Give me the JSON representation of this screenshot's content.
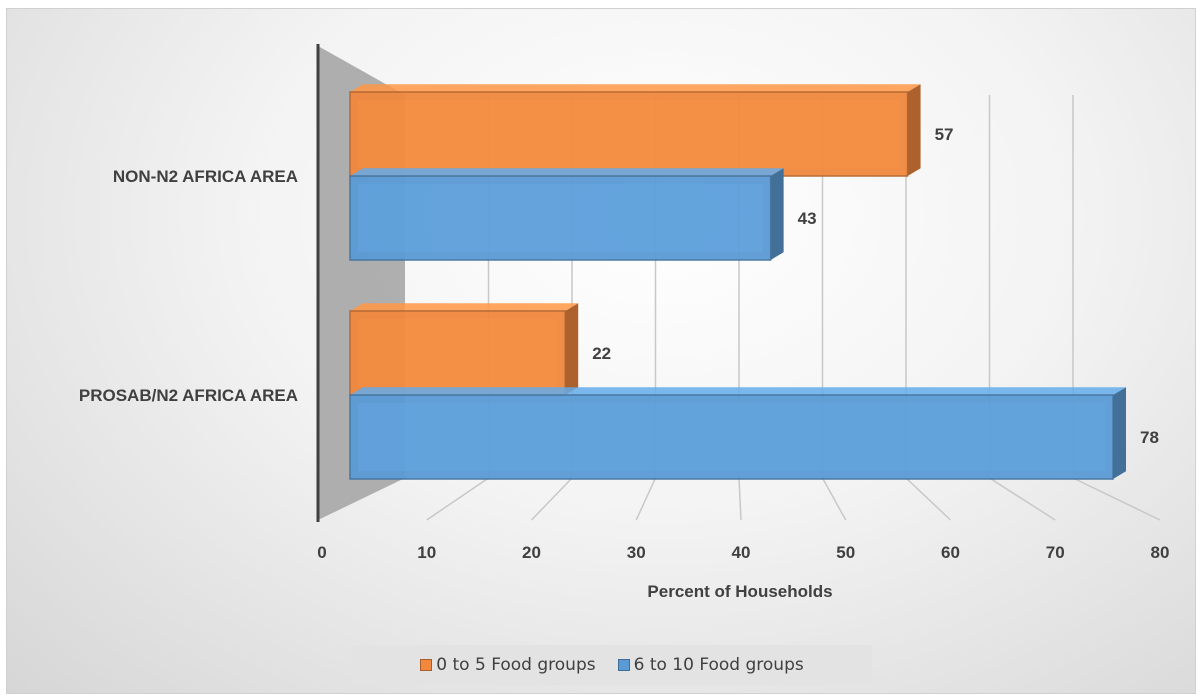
{
  "chart_data": {
    "type": "bar",
    "orientation": "horizontal",
    "style": "3d",
    "categories": [
      "NON-N2 AFRICA AREA",
      "PROSAB/N2 AFRICA AREA"
    ],
    "series": [
      {
        "name": "0 to 5 Food groups",
        "values": [
          57,
          22
        ],
        "color": "#f0883e"
      },
      {
        "name": "6 to 10 Food groups",
        "values": [
          43,
          78
        ],
        "color": "#5b9bd5"
      }
    ],
    "xlabel": "Percent of Households",
    "ylabel": "",
    "xlim": [
      0,
      80
    ],
    "xticks": [
      "0",
      "10",
      "20",
      "30",
      "40",
      "50",
      "60",
      "70",
      "80"
    ],
    "data_labels": true,
    "grid": true,
    "legend_position": "bottom"
  }
}
